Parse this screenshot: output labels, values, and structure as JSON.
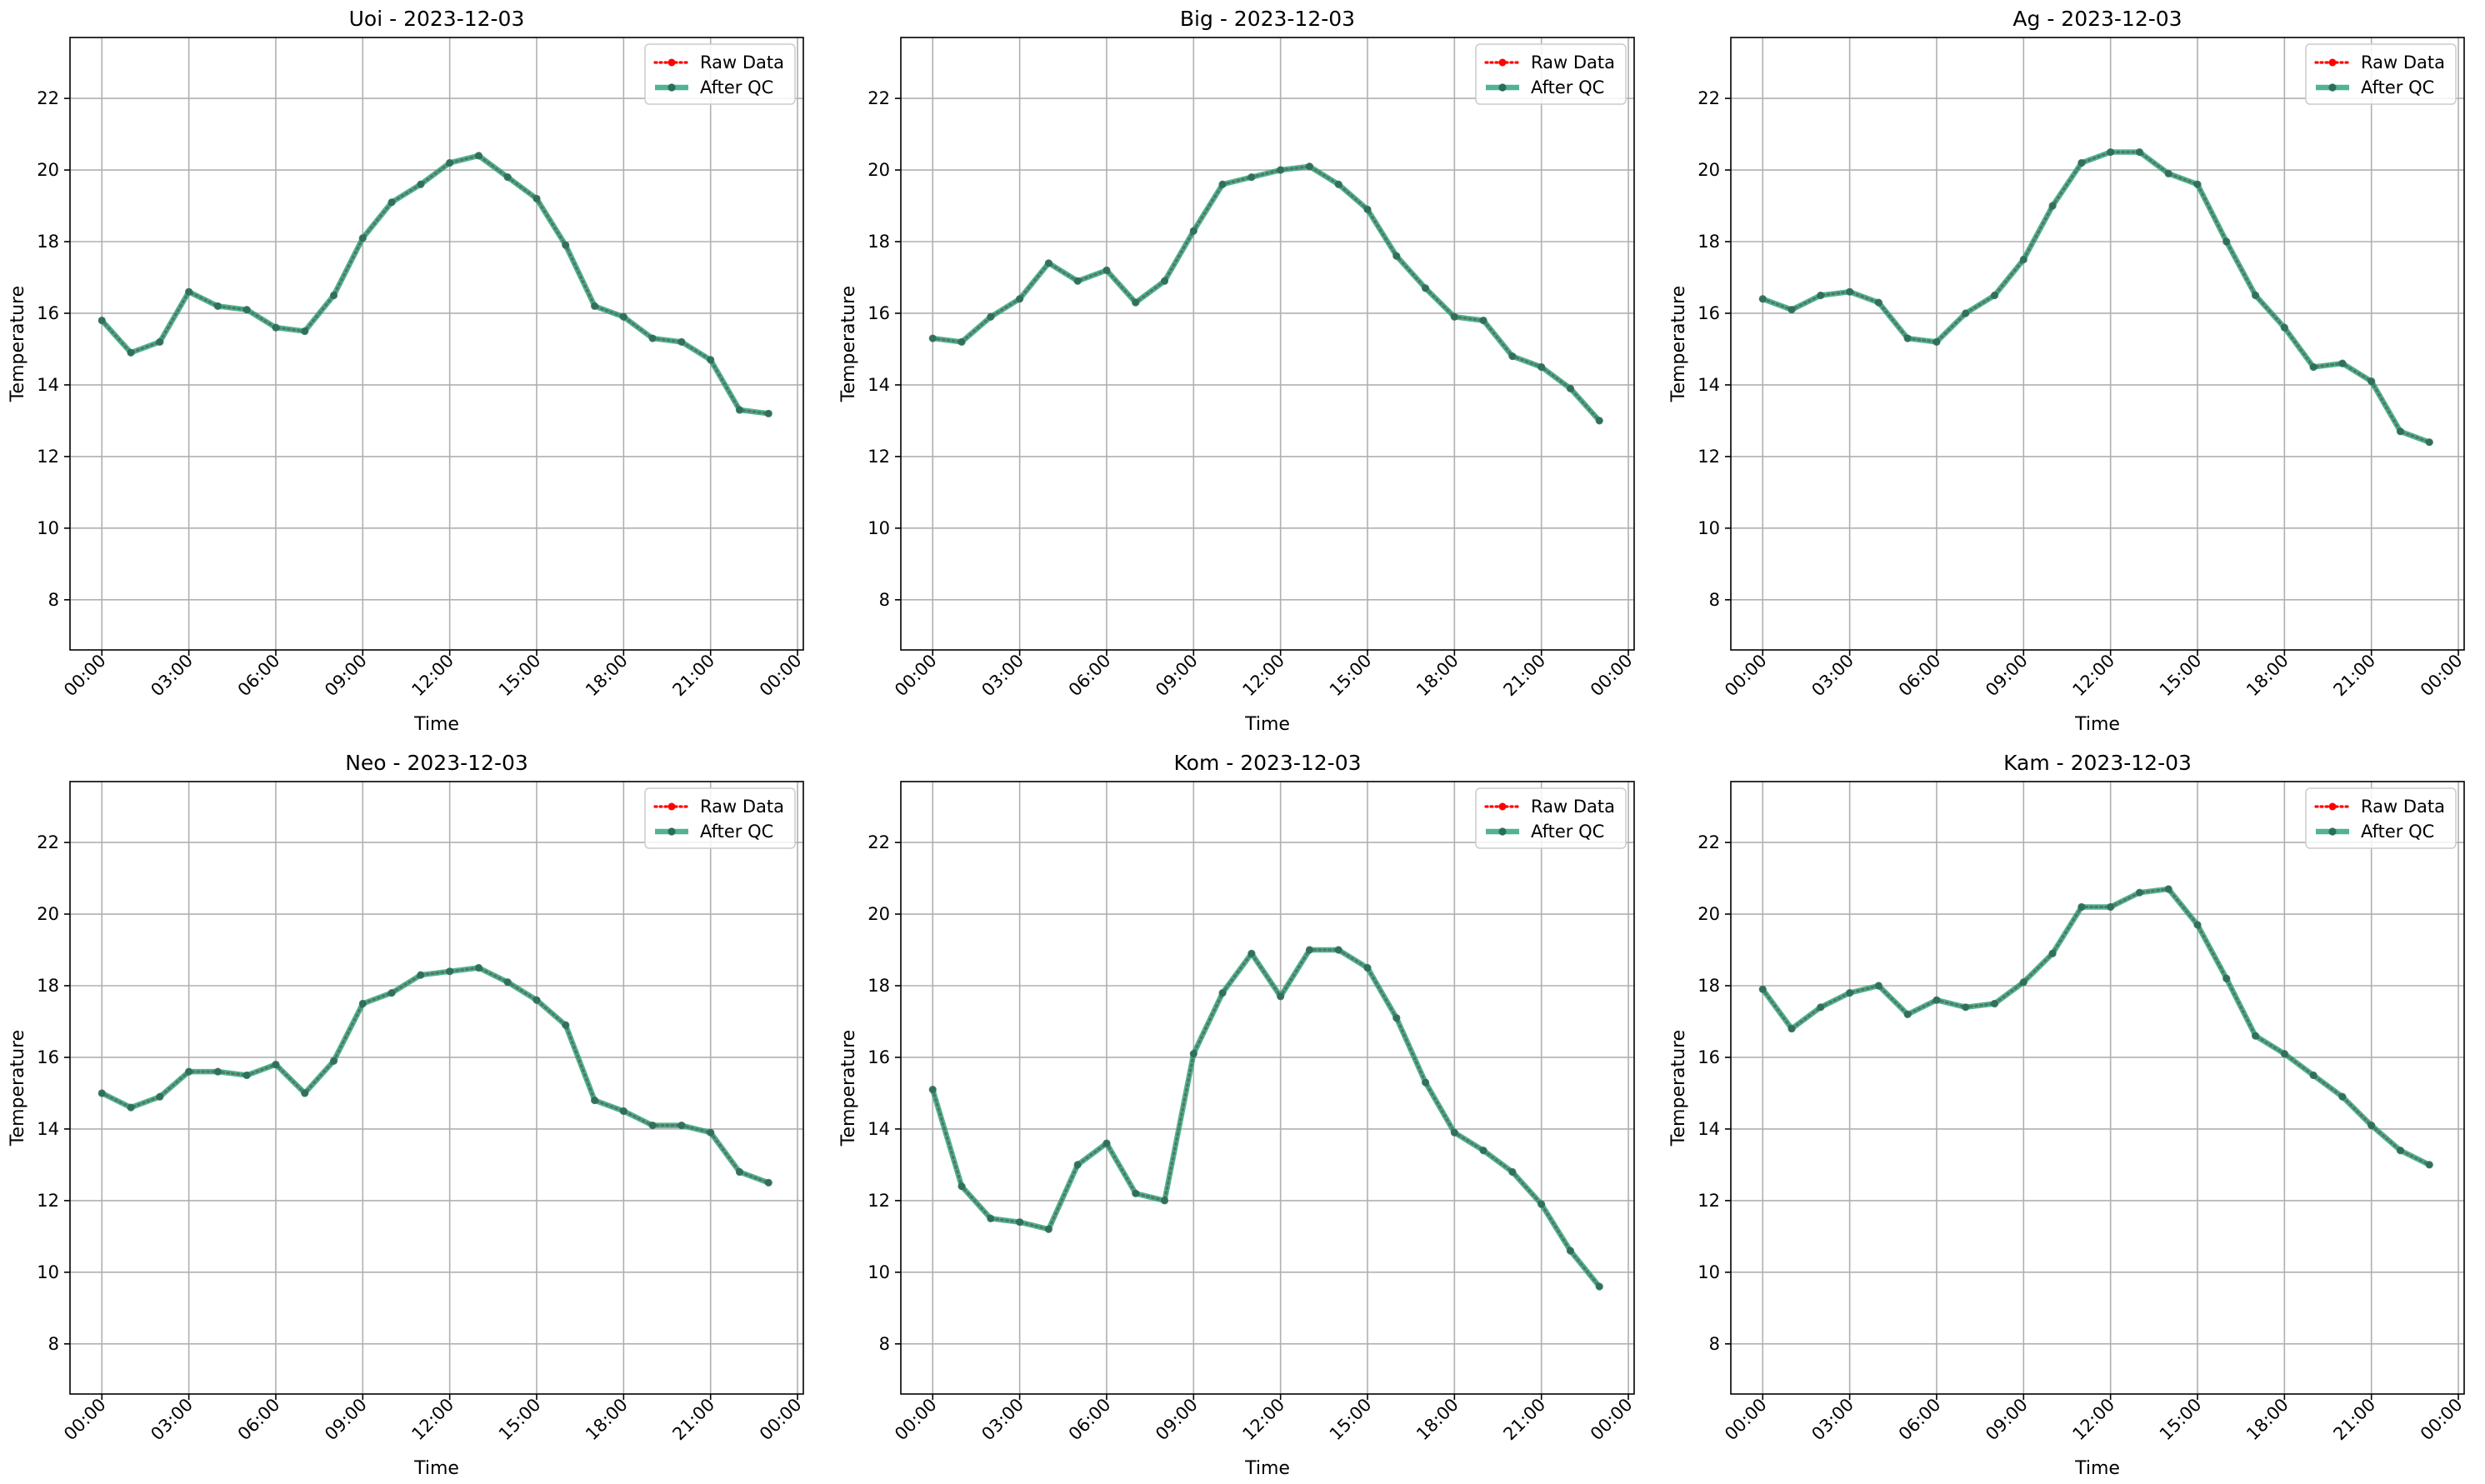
{
  "colors": {
    "raw": "#ff0000",
    "qc": "#1f9e77",
    "qc_marker": "#2a6e5a",
    "grid": "#b0b0b0",
    "axis": "#000000"
  },
  "legend": {
    "placement": "upper-right",
    "raw_label": "Raw Data",
    "qc_label": "After QC"
  },
  "chart_data": [
    {
      "type": "line",
      "title": "Uoi - 2023-12-03",
      "xlabel": "Time",
      "ylabel": "Temperature",
      "ylim": [
        6.6,
        23.7
      ],
      "yticks": [
        8,
        10,
        12,
        14,
        16,
        18,
        20,
        22
      ],
      "xlim_hours": [
        -1.1,
        24.2
      ],
      "xticks": [
        "00:00",
        "03:00",
        "06:00",
        "09:00",
        "12:00",
        "15:00",
        "18:00",
        "21:00",
        "00:00"
      ],
      "grid": true,
      "x": [
        "00:00",
        "01:00",
        "02:00",
        "03:00",
        "04:00",
        "05:00",
        "06:00",
        "07:00",
        "08:00",
        "09:00",
        "10:00",
        "11:00",
        "12:00",
        "13:00",
        "14:00",
        "15:00",
        "16:00",
        "17:00",
        "18:00",
        "19:00",
        "20:00",
        "21:00",
        "22:00",
        "23:00"
      ],
      "series": [
        {
          "name": "Raw Data",
          "values": [
            15.8,
            14.9,
            15.2,
            16.6,
            16.2,
            16.1,
            15.6,
            15.5,
            16.5,
            18.1,
            19.1,
            19.6,
            20.2,
            20.4,
            19.8,
            19.2,
            17.9,
            16.2,
            15.9,
            15.3,
            15.2,
            14.7,
            13.3,
            13.2
          ]
        },
        {
          "name": "After QC",
          "values": [
            15.8,
            14.9,
            15.2,
            16.6,
            16.2,
            16.1,
            15.6,
            15.5,
            16.5,
            18.1,
            19.1,
            19.6,
            20.2,
            20.4,
            19.8,
            19.2,
            17.9,
            16.2,
            15.9,
            15.3,
            15.2,
            14.7,
            13.3,
            13.2
          ]
        }
      ]
    },
    {
      "type": "line",
      "title": "Big - 2023-12-03",
      "xlabel": "Time",
      "ylabel": "Temperature",
      "ylim": [
        6.6,
        23.7
      ],
      "yticks": [
        8,
        10,
        12,
        14,
        16,
        18,
        20,
        22
      ],
      "xlim_hours": [
        -1.1,
        24.2
      ],
      "xticks": [
        "00:00",
        "03:00",
        "06:00",
        "09:00",
        "12:00",
        "15:00",
        "18:00",
        "21:00",
        "00:00"
      ],
      "grid": true,
      "x": [
        "00:00",
        "01:00",
        "02:00",
        "03:00",
        "04:00",
        "05:00",
        "06:00",
        "07:00",
        "08:00",
        "09:00",
        "10:00",
        "11:00",
        "12:00",
        "13:00",
        "14:00",
        "15:00",
        "16:00",
        "17:00",
        "18:00",
        "19:00",
        "20:00",
        "21:00",
        "22:00",
        "23:00"
      ],
      "series": [
        {
          "name": "Raw Data",
          "values": [
            15.3,
            15.2,
            15.9,
            16.4,
            17.4,
            16.9,
            17.2,
            16.3,
            16.9,
            18.3,
            19.6,
            19.8,
            20.0,
            20.1,
            19.6,
            18.9,
            17.6,
            16.7,
            15.9,
            15.8,
            14.8,
            14.5,
            13.9,
            13.0
          ]
        },
        {
          "name": "After QC",
          "values": [
            15.3,
            15.2,
            15.9,
            16.4,
            17.4,
            16.9,
            17.2,
            16.3,
            16.9,
            18.3,
            19.6,
            19.8,
            20.0,
            20.1,
            19.6,
            18.9,
            17.6,
            16.7,
            15.9,
            15.8,
            14.8,
            14.5,
            13.9,
            13.0
          ]
        }
      ]
    },
    {
      "type": "line",
      "title": "Ag - 2023-12-03",
      "xlabel": "Time",
      "ylabel": "Temperature",
      "ylim": [
        6.6,
        23.7
      ],
      "yticks": [
        8,
        10,
        12,
        14,
        16,
        18,
        20,
        22
      ],
      "xlim_hours": [
        -1.1,
        24.2
      ],
      "xticks": [
        "00:00",
        "03:00",
        "06:00",
        "09:00",
        "12:00",
        "15:00",
        "18:00",
        "21:00",
        "00:00"
      ],
      "grid": true,
      "x": [
        "00:00",
        "01:00",
        "02:00",
        "03:00",
        "04:00",
        "05:00",
        "06:00",
        "07:00",
        "08:00",
        "09:00",
        "10:00",
        "11:00",
        "12:00",
        "13:00",
        "14:00",
        "15:00",
        "16:00",
        "17:00",
        "18:00",
        "19:00",
        "20:00",
        "21:00",
        "22:00",
        "23:00"
      ],
      "series": [
        {
          "name": "Raw Data",
          "values": [
            16.4,
            16.1,
            16.5,
            16.6,
            16.3,
            15.3,
            15.2,
            16.0,
            16.5,
            17.5,
            19.0,
            20.2,
            20.5,
            20.5,
            19.9,
            19.6,
            18.0,
            16.5,
            15.6,
            14.5,
            14.6,
            14.1,
            12.7,
            12.4
          ]
        },
        {
          "name": "After QC",
          "values": [
            16.4,
            16.1,
            16.5,
            16.6,
            16.3,
            15.3,
            15.2,
            16.0,
            16.5,
            17.5,
            19.0,
            20.2,
            20.5,
            20.5,
            19.9,
            19.6,
            18.0,
            16.5,
            15.6,
            14.5,
            14.6,
            14.1,
            12.7,
            12.4
          ]
        }
      ]
    },
    {
      "type": "line",
      "title": "Neo - 2023-12-03",
      "xlabel": "Time",
      "ylabel": "Temperature",
      "ylim": [
        6.6,
        23.7
      ],
      "yticks": [
        8,
        10,
        12,
        14,
        16,
        18,
        20,
        22
      ],
      "xlim_hours": [
        -1.1,
        24.2
      ],
      "xticks": [
        "00:00",
        "03:00",
        "06:00",
        "09:00",
        "12:00",
        "15:00",
        "18:00",
        "21:00",
        "00:00"
      ],
      "grid": true,
      "x": [
        "00:00",
        "01:00",
        "02:00",
        "03:00",
        "04:00",
        "05:00",
        "06:00",
        "07:00",
        "08:00",
        "09:00",
        "10:00",
        "11:00",
        "12:00",
        "13:00",
        "14:00",
        "15:00",
        "16:00",
        "17:00",
        "18:00",
        "19:00",
        "20:00",
        "21:00",
        "22:00",
        "23:00"
      ],
      "series": [
        {
          "name": "Raw Data",
          "values": [
            15.0,
            14.6,
            14.9,
            15.6,
            15.6,
            15.5,
            15.8,
            15.0,
            15.9,
            17.5,
            17.8,
            18.3,
            18.4,
            18.5,
            18.1,
            17.6,
            16.9,
            14.8,
            14.5,
            14.1,
            14.1,
            13.9,
            12.8,
            12.5
          ]
        },
        {
          "name": "After QC",
          "values": [
            15.0,
            14.6,
            14.9,
            15.6,
            15.6,
            15.5,
            15.8,
            15.0,
            15.9,
            17.5,
            17.8,
            18.3,
            18.4,
            18.5,
            18.1,
            17.6,
            16.9,
            14.8,
            14.5,
            14.1,
            14.1,
            13.9,
            12.8,
            12.5
          ]
        }
      ]
    },
    {
      "type": "line",
      "title": "Kom - 2023-12-03",
      "xlabel": "Time",
      "ylabel": "Temperature",
      "ylim": [
        6.6,
        23.7
      ],
      "yticks": [
        8,
        10,
        12,
        14,
        16,
        18,
        20,
        22
      ],
      "xlim_hours": [
        -1.1,
        24.2
      ],
      "xticks": [
        "00:00",
        "03:00",
        "06:00",
        "09:00",
        "12:00",
        "15:00",
        "18:00",
        "21:00",
        "00:00"
      ],
      "grid": true,
      "x": [
        "00:00",
        "01:00",
        "02:00",
        "03:00",
        "04:00",
        "05:00",
        "06:00",
        "07:00",
        "08:00",
        "09:00",
        "10:00",
        "11:00",
        "12:00",
        "13:00",
        "14:00",
        "15:00",
        "16:00",
        "17:00",
        "18:00",
        "19:00",
        "20:00",
        "21:00",
        "22:00",
        "23:00"
      ],
      "series": [
        {
          "name": "Raw Data",
          "values": [
            15.1,
            12.4,
            11.5,
            11.4,
            11.2,
            13.0,
            13.6,
            12.2,
            12.0,
            16.1,
            17.8,
            18.9,
            17.7,
            19.0,
            19.0,
            18.5,
            17.1,
            15.3,
            13.9,
            13.4,
            12.8,
            11.9,
            10.6,
            9.6
          ]
        },
        {
          "name": "After QC",
          "values": [
            15.1,
            12.4,
            11.5,
            11.4,
            11.2,
            13.0,
            13.6,
            12.2,
            12.0,
            16.1,
            17.8,
            18.9,
            17.7,
            19.0,
            19.0,
            18.5,
            17.1,
            15.3,
            13.9,
            13.4,
            12.8,
            11.9,
            10.6,
            9.6
          ]
        }
      ]
    },
    {
      "type": "line",
      "title": "Kam - 2023-12-03",
      "xlabel": "Time",
      "ylabel": "Temperature",
      "ylim": [
        6.6,
        23.7
      ],
      "yticks": [
        8,
        10,
        12,
        14,
        16,
        18,
        20,
        22
      ],
      "xlim_hours": [
        -1.1,
        24.2
      ],
      "xticks": [
        "00:00",
        "03:00",
        "06:00",
        "09:00",
        "12:00",
        "15:00",
        "18:00",
        "21:00",
        "00:00"
      ],
      "grid": true,
      "x": [
        "00:00",
        "01:00",
        "02:00",
        "03:00",
        "04:00",
        "05:00",
        "06:00",
        "07:00",
        "08:00",
        "09:00",
        "10:00",
        "11:00",
        "12:00",
        "13:00",
        "14:00",
        "15:00",
        "16:00",
        "17:00",
        "18:00",
        "19:00",
        "20:00",
        "21:00",
        "22:00",
        "23:00"
      ],
      "series": [
        {
          "name": "Raw Data",
          "values": [
            17.9,
            16.8,
            17.4,
            17.8,
            18.0,
            17.2,
            17.6,
            17.4,
            17.5,
            18.1,
            18.9,
            20.2,
            20.2,
            20.6,
            20.7,
            19.7,
            18.2,
            16.6,
            16.1,
            15.5,
            14.9,
            14.1,
            13.4,
            13.0
          ]
        },
        {
          "name": "After QC",
          "values": [
            17.9,
            16.8,
            17.4,
            17.8,
            18.0,
            17.2,
            17.6,
            17.4,
            17.5,
            18.1,
            18.9,
            20.2,
            20.2,
            20.6,
            20.7,
            19.7,
            18.2,
            16.6,
            16.1,
            15.5,
            14.9,
            14.1,
            13.4,
            13.0
          ]
        }
      ]
    }
  ]
}
